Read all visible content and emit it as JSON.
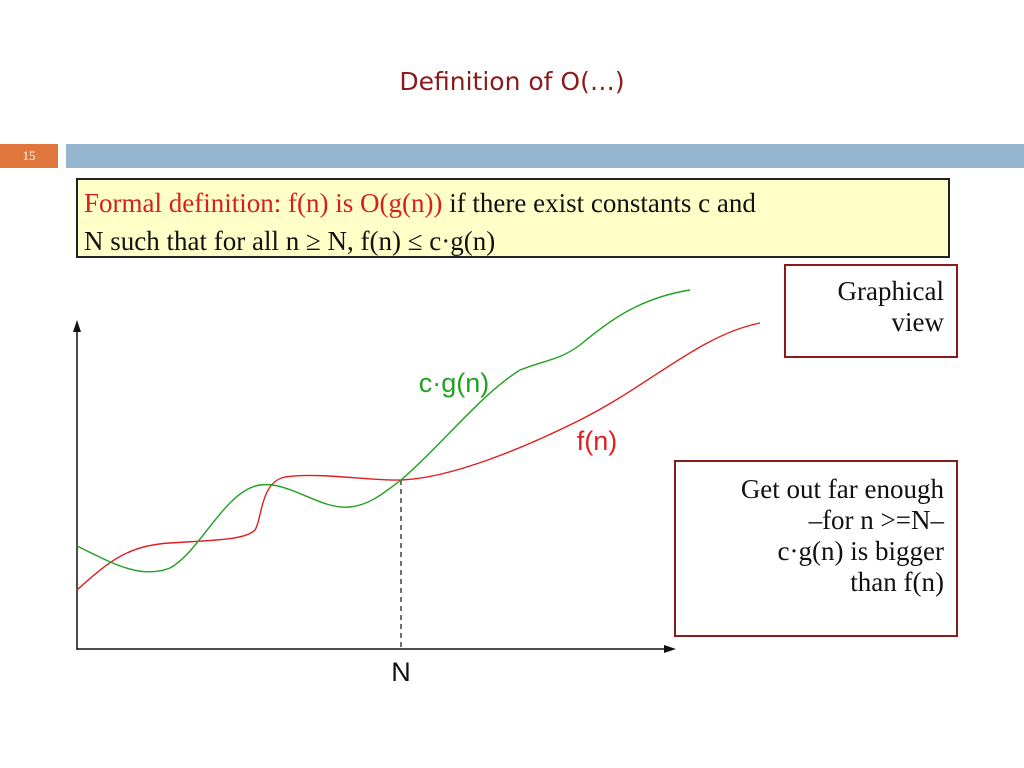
{
  "slide": {
    "title": "Definition of O(…)",
    "number": "15"
  },
  "definition": {
    "lead": "Formal definition: f(n) is O(g(n))",
    "rest_line1": " if there exist constants c and",
    "line2": "N such that for all n ≥ N,   f(n) ≤ c·g(n)"
  },
  "callouts": {
    "graphical_view": [
      "Graphical",
      "view"
    ],
    "note": [
      "Get out far enough",
      "–for n >=N–",
      "c·g(n) is bigger",
      "than f(n)"
    ]
  },
  "diagram": {
    "curve_labels": {
      "cg": "c·g(n)",
      "f": "f(n)"
    },
    "x_marker_label": "N",
    "colors": {
      "cg": "#22a022",
      "f": "#e02020",
      "axis": "#111111",
      "label_cg": "#22a022",
      "label_f": "#e02020"
    }
  }
}
